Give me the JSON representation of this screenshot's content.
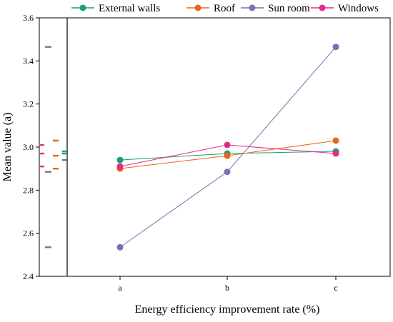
{
  "chart_data": {
    "type": "line",
    "xlabel": "Energy efficiency improvement rate (%)",
    "ylabel": "Mean value (a)",
    "categories": [
      "a",
      "b",
      "c"
    ],
    "ylim": [
      2.4,
      3.6
    ],
    "yticks": [
      "2.4",
      "2.6",
      "2.8",
      "3.0",
      "3.2",
      "3.4",
      "3.6"
    ],
    "grid": false,
    "legend_position": "top",
    "side_panel": "marginal dash markers of each series' values, left of the main plot",
    "series": [
      {
        "name": "External walls",
        "color": "#1b9e77",
        "values": [
          2.94,
          2.97,
          2.98
        ]
      },
      {
        "name": "Roof",
        "color": "#e8661c",
        "values": [
          2.9,
          2.96,
          3.03
        ]
      },
      {
        "name": "Sun room",
        "color": "#7a6fb4",
        "values": [
          2.535,
          2.885,
          3.465
        ]
      },
      {
        "name": "Windows",
        "color": "#e7298a",
        "values": [
          2.91,
          3.01,
          2.97
        ]
      }
    ]
  }
}
